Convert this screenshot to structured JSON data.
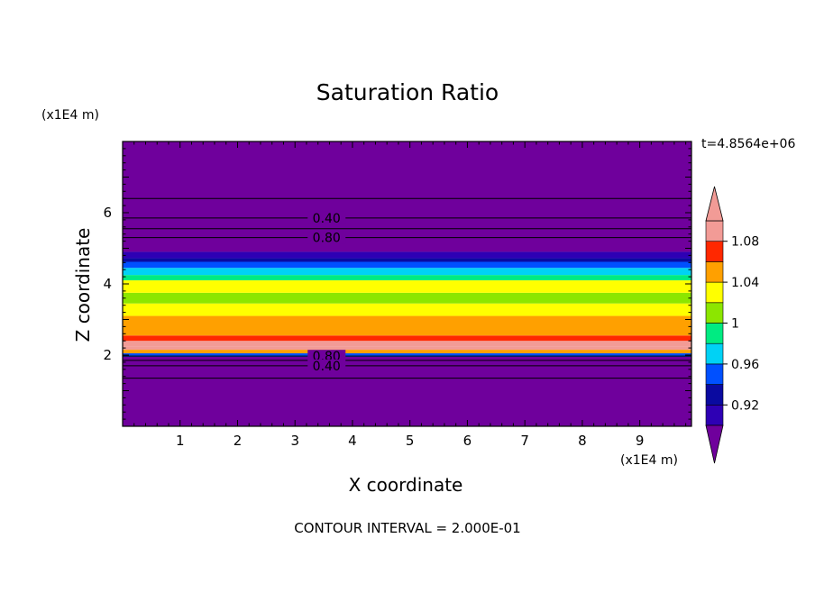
{
  "title": "Saturation Ratio",
  "time_label": "t=4.8564e+06",
  "contour_interval": "CONTOUR INTERVAL = 2.000E-01",
  "chart_data": {
    "type": "heatmap",
    "title": "Saturation Ratio",
    "xlabel": "X coordinate",
    "ylabel": "Z coordinate",
    "x_unit": "(x1E4 m)",
    "y_unit": "(x1E4 m)",
    "xlim": [
      0,
      9.9
    ],
    "ylim": [
      0,
      8.0
    ],
    "x_ticks": [
      1,
      2,
      3,
      4,
      5,
      6,
      7,
      8,
      9
    ],
    "y_ticks": [
      2,
      4,
      6
    ],
    "colorbar": {
      "levels": [
        0.9,
        0.92,
        0.94,
        0.96,
        0.98,
        1.0,
        1.02,
        1.04,
        1.06,
        1.08,
        1.1
      ],
      "labels": [
        "0.92",
        "0.96",
        "1",
        "1.04",
        "1.08"
      ],
      "colors": [
        "#6f009c",
        "#2e00b4",
        "#0a0aa0",
        "#0050ff",
        "#00d2f5",
        "#00eb82",
        "#8ce600",
        "#ffff00",
        "#ffa000",
        "#ff2800",
        "#f29b96",
        "#f29b96"
      ],
      "extend": "both"
    },
    "bands": [
      {
        "z_bottom": 0.0,
        "z_top": 1.95,
        "value": 0.3
      },
      {
        "z_bottom": 1.95,
        "z_top": 2.05,
        "value": 0.94
      },
      {
        "z_bottom": 2.05,
        "z_top": 2.15,
        "value": 1.04
      },
      {
        "z_bottom": 2.15,
        "z_top": 2.25,
        "value": 1.12
      },
      {
        "z_bottom": 2.25,
        "z_top": 2.4,
        "value": 1.09
      },
      {
        "z_bottom": 2.4,
        "z_top": 2.55,
        "value": 1.06
      },
      {
        "z_bottom": 2.55,
        "z_top": 3.1,
        "value": 1.04
      },
      {
        "z_bottom": 3.1,
        "z_top": 3.45,
        "value": 1.03
      },
      {
        "z_bottom": 3.45,
        "z_top": 3.75,
        "value": 1.01
      },
      {
        "z_bottom": 3.75,
        "z_top": 4.1,
        "value": 1.02
      },
      {
        "z_bottom": 4.1,
        "z_top": 4.25,
        "value": 0.99
      },
      {
        "z_bottom": 4.25,
        "z_top": 4.45,
        "value": 0.975
      },
      {
        "z_bottom": 4.45,
        "z_top": 4.62,
        "value": 0.955
      },
      {
        "z_bottom": 4.62,
        "z_top": 4.72,
        "value": 0.935
      },
      {
        "z_bottom": 4.72,
        "z_top": 4.9,
        "value": 0.915
      },
      {
        "z_bottom": 4.9,
        "z_top": 8.0,
        "value": 0.5
      }
    ],
    "contours": [
      {
        "level": 0.2,
        "z": 6.4
      },
      {
        "level": 0.4,
        "z": 5.85,
        "label": "0.40"
      },
      {
        "level": 0.6,
        "z": 5.55
      },
      {
        "level": 0.8,
        "z": 5.3,
        "label": "0.80"
      },
      {
        "level": 0.8,
        "z": 1.97,
        "label": "0.80"
      },
      {
        "level": 0.6,
        "z": 1.85
      },
      {
        "level": 0.4,
        "z": 1.7,
        "label": "0.40"
      },
      {
        "level": 0.2,
        "z": 1.35
      }
    ]
  }
}
